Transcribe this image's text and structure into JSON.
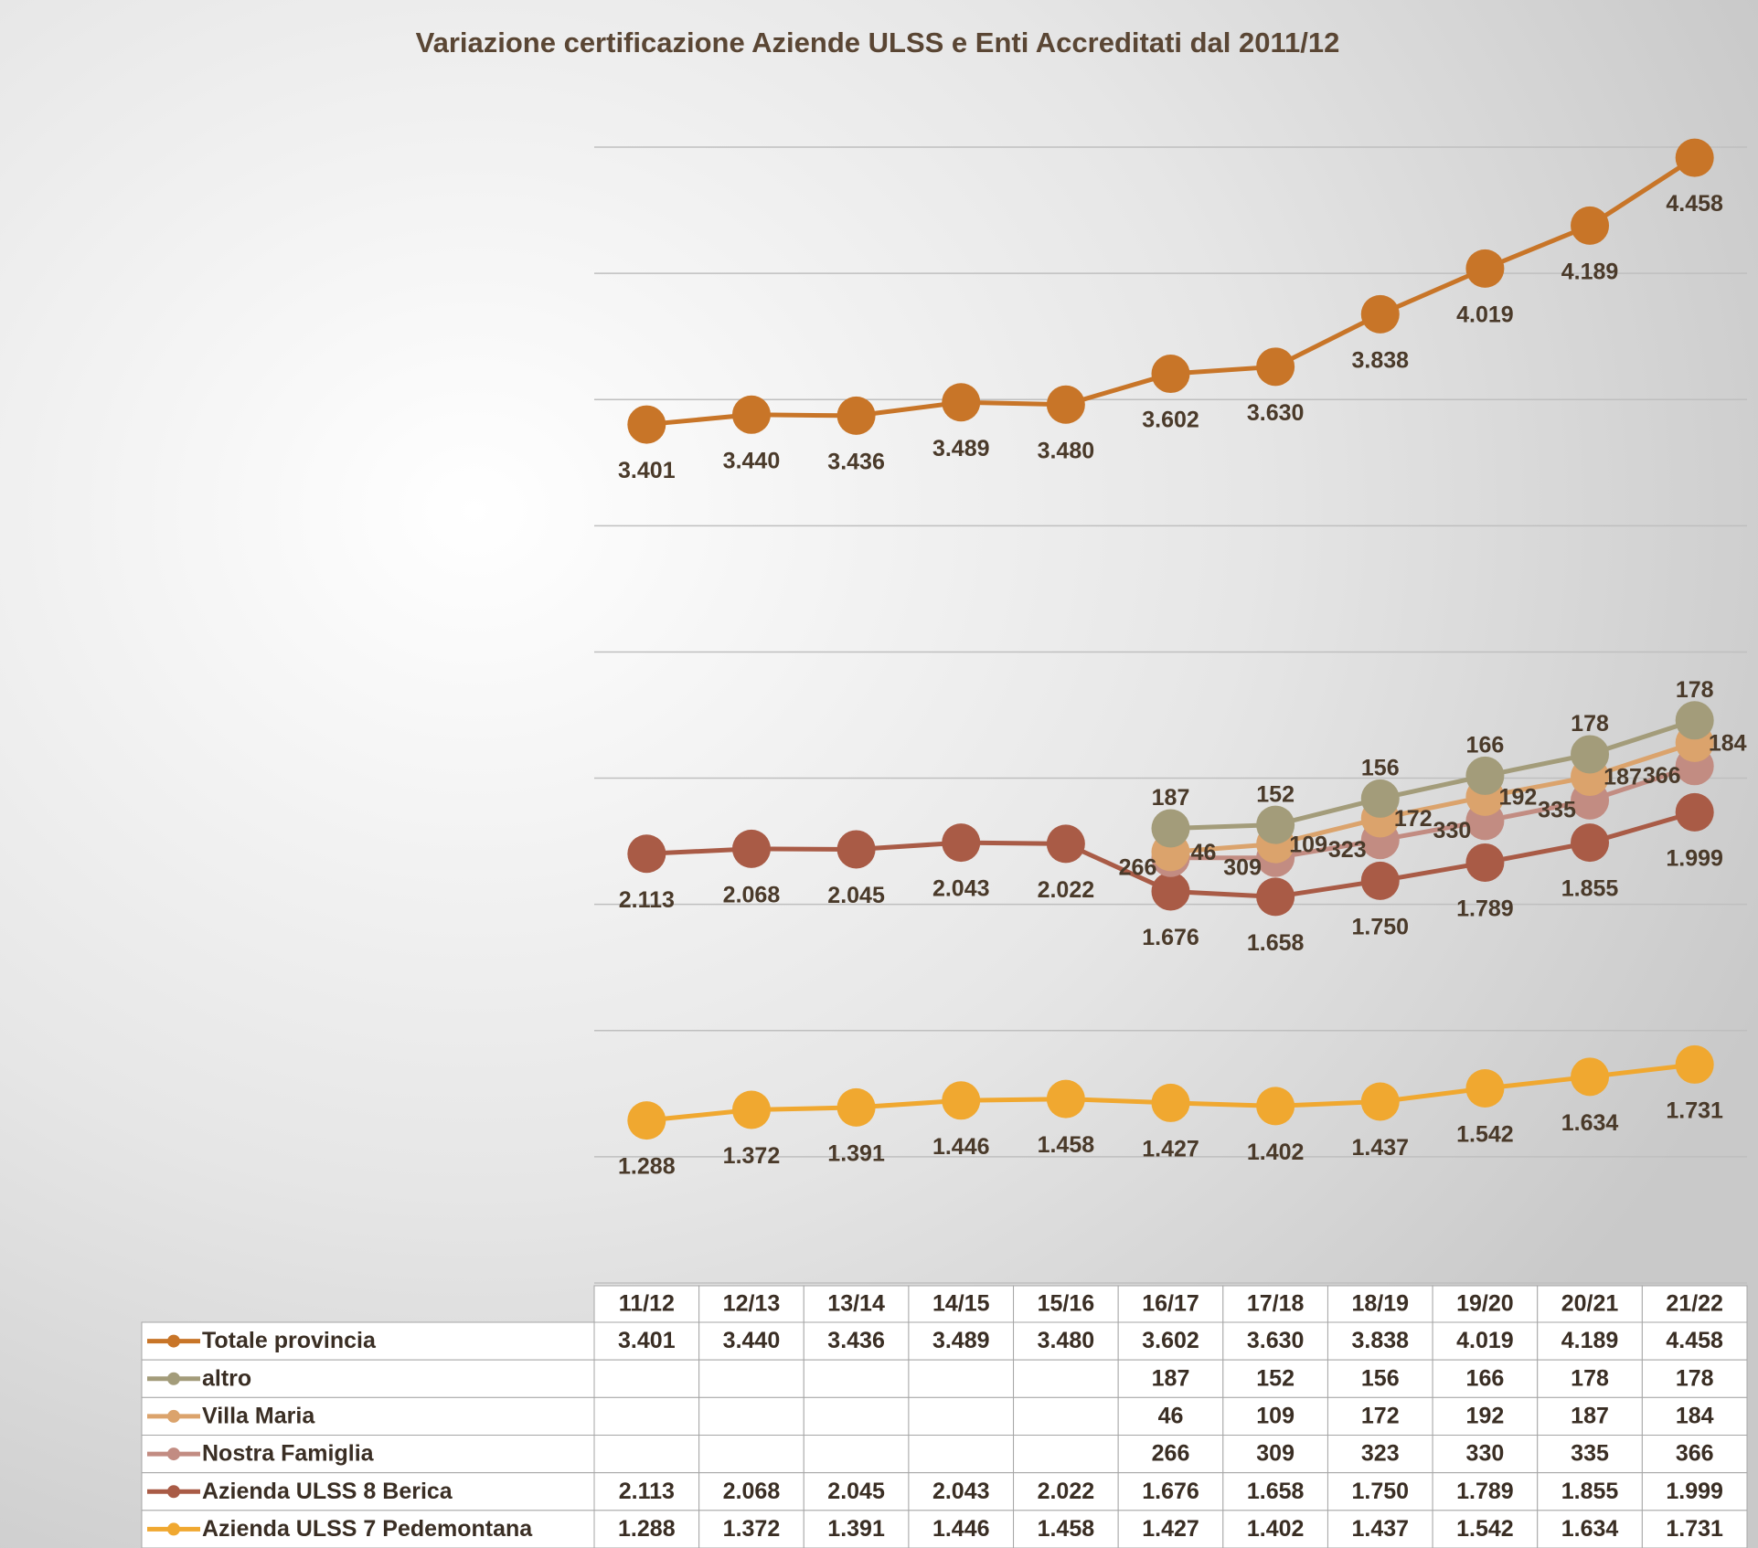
{
  "chart_data": {
    "type": "stacked-line",
    "title": "Variazione certificazione Aziende ULSS e Enti Accreditati dal 2011/12",
    "categories": [
      "11/12",
      "12/13",
      "13/14",
      "14/15",
      "15/16",
      "16/17",
      "17/18",
      "18/19",
      "19/20",
      "20/21",
      "21/22"
    ],
    "ylim": [
      0,
      9000
    ],
    "yticks": [
      0,
      1000,
      2000,
      3000,
      4000,
      5000,
      6000,
      7000,
      8000,
      9000
    ],
    "grid": true,
    "series": [
      {
        "name": "Totale provincia",
        "color": "#c87528",
        "values": [
          3401,
          3440,
          3436,
          3489,
          3480,
          3602,
          3630,
          3838,
          4019,
          4189,
          4458
        ],
        "value_labels": [
          "3.401",
          "3.440",
          "3.436",
          "3.489",
          "3.480",
          "3.602",
          "3.630",
          "3.838",
          "4.019",
          "4.189",
          "4.458"
        ]
      },
      {
        "name": "altro",
        "color": "#a39c7a",
        "values": [
          null,
          null,
          null,
          null,
          null,
          187,
          152,
          156,
          166,
          178,
          178
        ],
        "value_labels": [
          null,
          null,
          null,
          null,
          null,
          "187",
          "152",
          "156",
          "166",
          "178",
          "178"
        ]
      },
      {
        "name": "Villa Maria",
        "color": "#dba36c",
        "values": [
          null,
          null,
          null,
          null,
          null,
          46,
          109,
          172,
          192,
          187,
          184
        ],
        "value_labels": [
          null,
          null,
          null,
          null,
          null,
          "46",
          "109",
          "172",
          "192",
          "187",
          "184"
        ]
      },
      {
        "name": "Nostra Famiglia",
        "color": "#c28c82",
        "values": [
          null,
          null,
          null,
          null,
          null,
          266,
          309,
          323,
          330,
          335,
          366
        ],
        "value_labels": [
          null,
          null,
          null,
          null,
          null,
          "266",
          "309",
          "323",
          "330",
          "335",
          "366"
        ]
      },
      {
        "name": "Azienda ULSS 8 Berica",
        "color": "#a95b46",
        "values": [
          2113,
          2068,
          2045,
          2043,
          2022,
          1676,
          1658,
          1750,
          1789,
          1855,
          1999
        ],
        "value_labels": [
          "2.113",
          "2.068",
          "2.045",
          "2.043",
          "2.022",
          "1.676",
          "1.658",
          "1.750",
          "1.789",
          "1.855",
          "1.999"
        ]
      },
      {
        "name": "Azienda ULSS 7 Pedemontana",
        "color": "#f0a830",
        "values": [
          1288,
          1372,
          1391,
          1446,
          1458,
          1427,
          1402,
          1437,
          1542,
          1634,
          1731
        ],
        "value_labels": [
          "1.288",
          "1.372",
          "1.391",
          "1.446",
          "1.458",
          "1.427",
          "1.402",
          "1.437",
          "1.542",
          "1.634",
          "1.731"
        ]
      }
    ]
  }
}
